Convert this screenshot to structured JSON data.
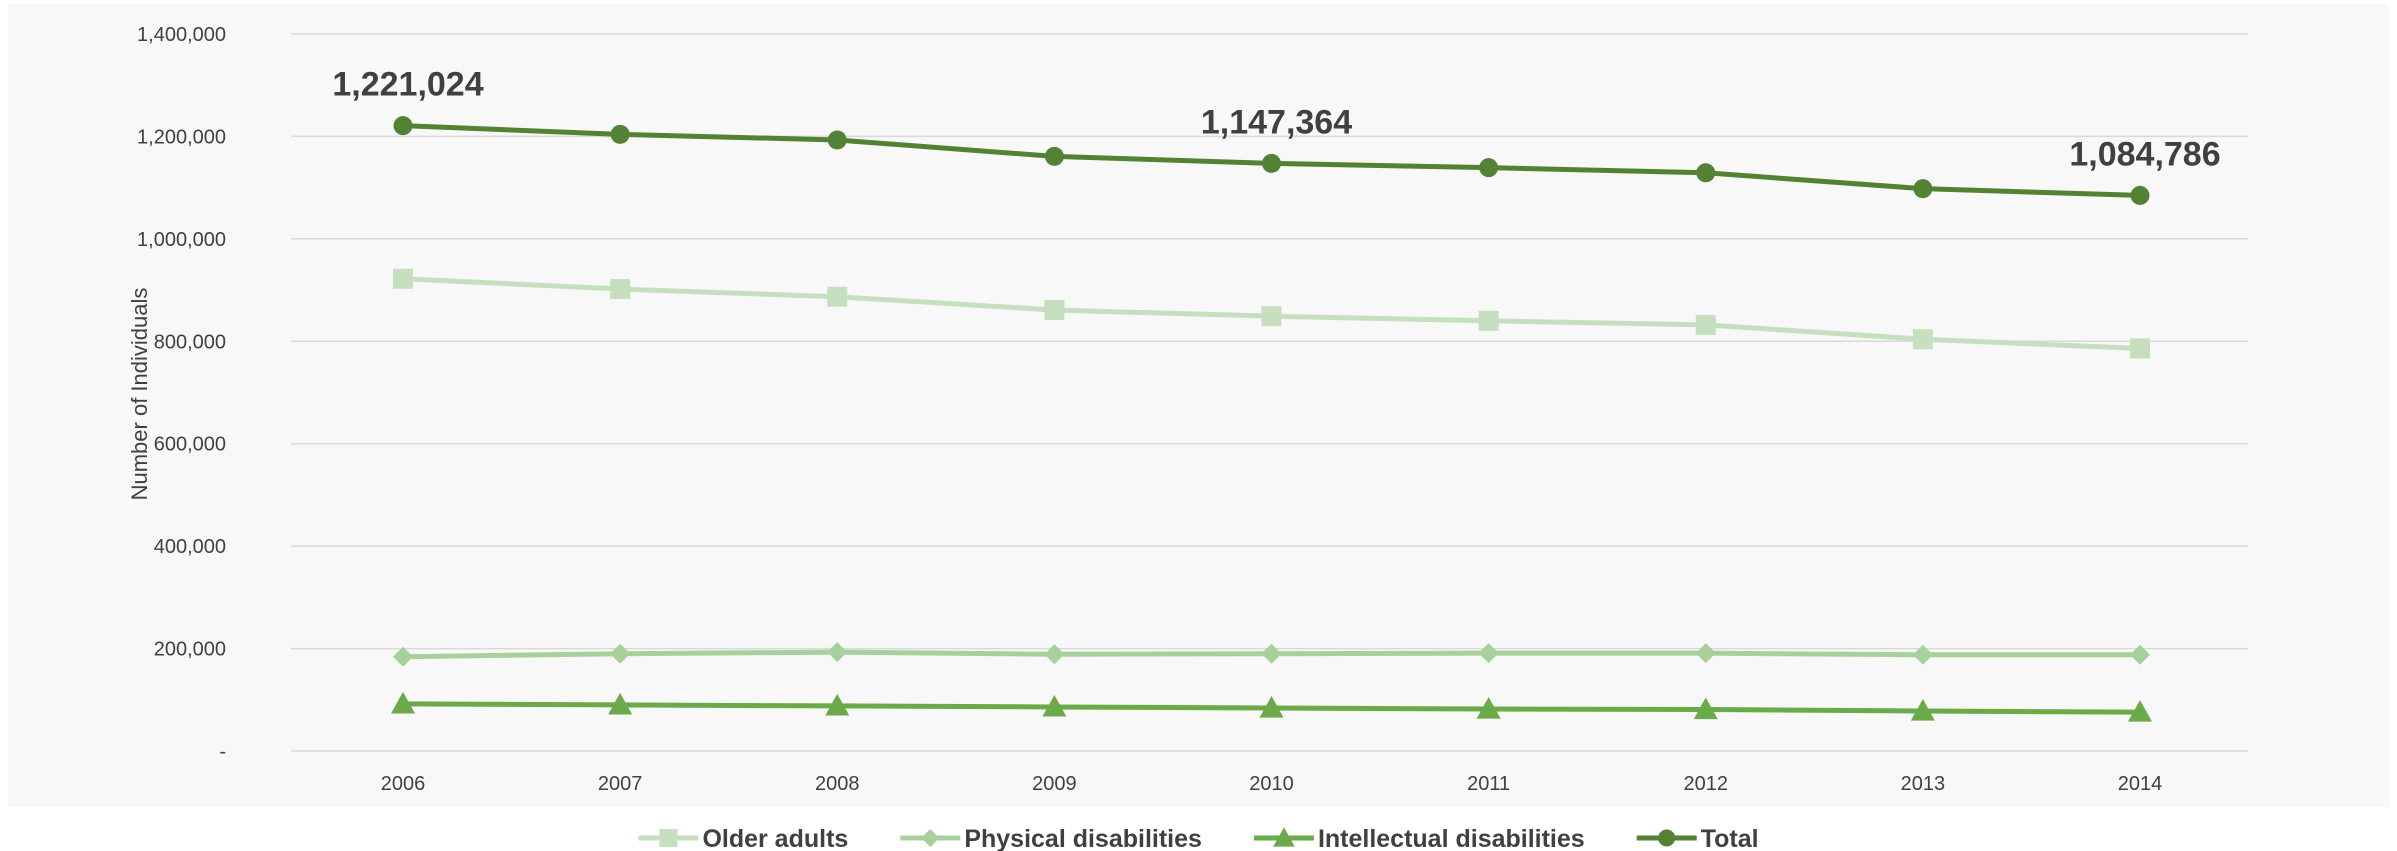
{
  "chart_data": {
    "type": "line",
    "categories": [
      "2006",
      "2007",
      "2008",
      "2009",
      "2010",
      "2011",
      "2012",
      "2013",
      "2014"
    ],
    "ylabel": "Number of Individuals",
    "ylim": [
      0,
      1400000
    ],
    "y_ticks": [
      0,
      200000,
      400000,
      600000,
      800000,
      1000000,
      1200000,
      1400000
    ],
    "y_tick_labels": [
      "-",
      "200,000",
      "400,000",
      "600,000",
      "800,000",
      "1,000,000",
      "1,200,000",
      "1,400,000"
    ],
    "grid": true,
    "legend_position": "bottom",
    "series": [
      {
        "name": "Older adults",
        "color": "#c5dfbf",
        "marker": "square",
        "values": [
          922000,
          902000,
          887000,
          861000,
          849000,
          840000,
          832000,
          804000,
          786000
        ]
      },
      {
        "name": "Physical disabilities",
        "color": "#a8d09a",
        "marker": "diamond",
        "values": [
          184000,
          190000,
          193000,
          189000,
          190000,
          191000,
          191000,
          188000,
          188000
        ]
      },
      {
        "name": "Intellectual disabilities",
        "color": "#6aaa48",
        "marker": "triangle",
        "values": [
          92000,
          90000,
          88000,
          86000,
          84000,
          82000,
          81000,
          78000,
          76000
        ]
      },
      {
        "name": "Total",
        "color": "#548235",
        "marker": "circle",
        "values": [
          1221024,
          1204000,
          1193000,
          1161000,
          1147364,
          1139000,
          1129000,
          1098000,
          1084786
        ]
      }
    ],
    "data_labels": [
      {
        "series": "Total",
        "category": "2006",
        "text": "1,221,024"
      },
      {
        "series": "Total",
        "category": "2010",
        "text": "1,147,364"
      },
      {
        "series": "Total",
        "category": "2014",
        "text": "1,084,786"
      }
    ]
  }
}
